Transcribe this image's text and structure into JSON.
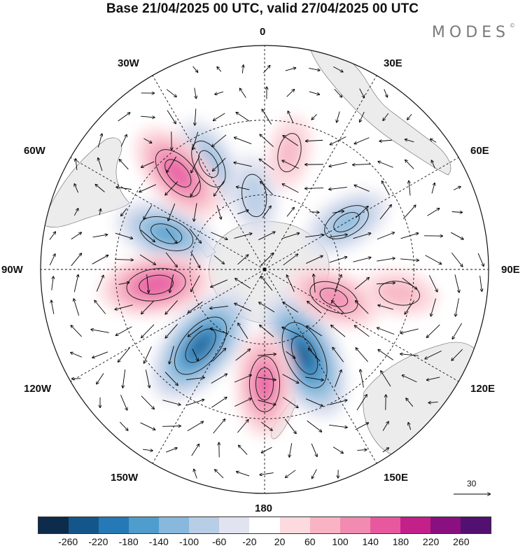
{
  "title": "Base 21/04/2025 00 UTC, valid 27/04/2025 00 UTC",
  "brand": "MODES",
  "brand_mark": "©",
  "longitude_labels": {
    "lon_0": "0",
    "lon_30e": "30E",
    "lon_60e": "60E",
    "lon_90e": "90E",
    "lon_120e": "120E",
    "lon_150e": "150E",
    "lon_180": "180",
    "lon_150w": "150W",
    "lon_120w": "120W",
    "lon_90w": "90W",
    "lon_60w": "60W",
    "lon_30w": "30W"
  },
  "vector_scale_label": "30",
  "colorbar": {
    "colors": [
      "#0d2b4a",
      "#14568a",
      "#2479b6",
      "#4f9dcc",
      "#88b9dd",
      "#b8cde6",
      "#e2e3f0",
      "#ffffff",
      "#fcdadf",
      "#f8b4c3",
      "#f18bb0",
      "#e8589f",
      "#c3208a",
      "#8a0f80",
      "#521070"
    ],
    "tick_labels": [
      "-260",
      "-220",
      "-180",
      "-140",
      "-100",
      "-60",
      "-20",
      "20",
      "60",
      "100",
      "140",
      "180",
      "220",
      "260"
    ]
  },
  "anomaly_centers": [
    {
      "lon": 155,
      "lat_colat": 38,
      "value": -230
    },
    {
      "lon": -140,
      "lat_colat": 40,
      "value": -220
    },
    {
      "lon": -70,
      "lat_colat": 42,
      "value": -150
    },
    {
      "lon": -28,
      "lat_colat": 48,
      "value": -120
    },
    {
      "lon": 60,
      "lat_colat": 38,
      "value": -110
    },
    {
      "lon": -8,
      "lat_colat": 30,
      "value": -80
    },
    {
      "lon": -98,
      "lat_colat": 44,
      "value": 170
    },
    {
      "lon": -42,
      "lat_colat": 52,
      "value": 160
    },
    {
      "lon": 180,
      "lat_colat": 46,
      "value": 150
    },
    {
      "lon": 112,
      "lat_colat": 30,
      "value": 120
    },
    {
      "lon": 12,
      "lat_colat": 48,
      "value": 60
    },
    {
      "lon": 100,
      "lat_colat": 55,
      "value": 70
    }
  ]
}
